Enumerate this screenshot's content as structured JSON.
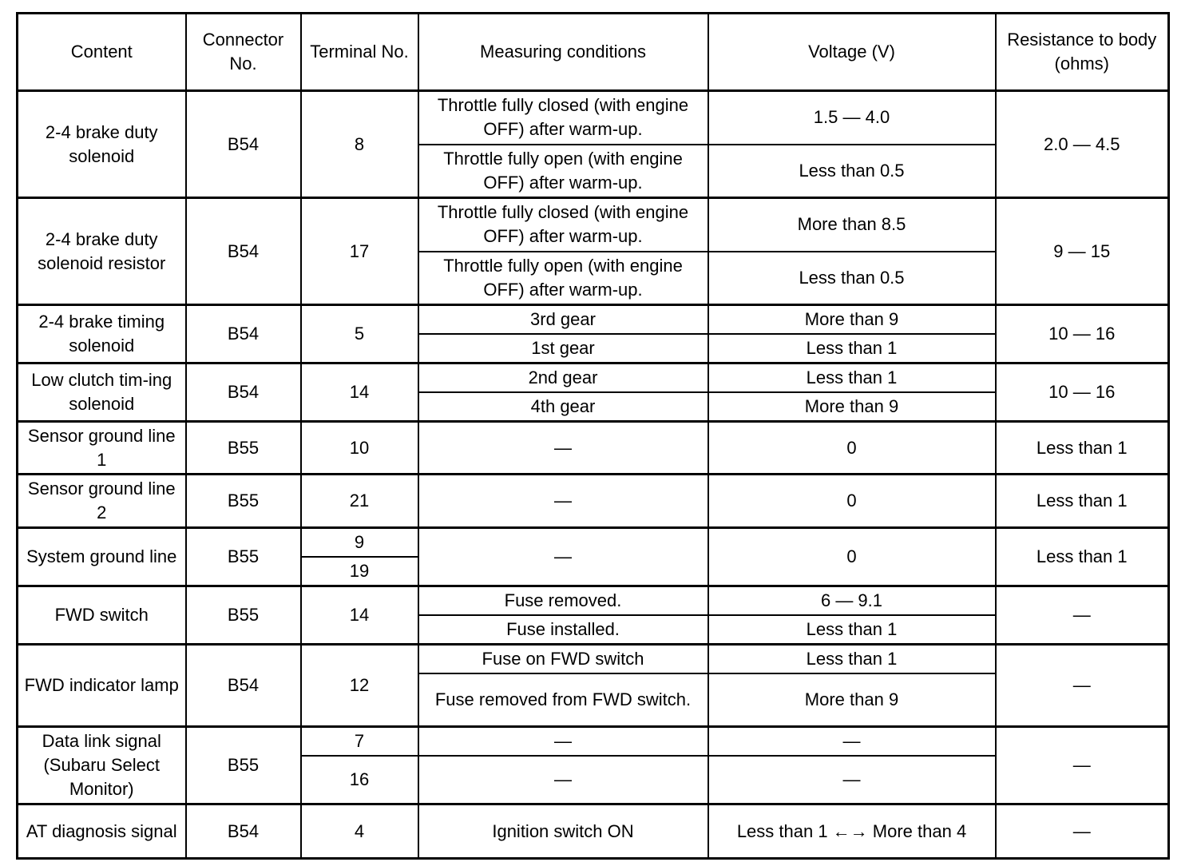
{
  "headers": [
    "Content",
    "Connector No.",
    "Terminal No.",
    "Measuring conditions",
    "Voltage (V)",
    "Resistance to body (ohms)"
  ],
  "groups": [
    {
      "content": "2-4 brake duty solenoid",
      "connector": "B54",
      "terminal": "8",
      "conditions": [
        "Throttle fully closed (with engine OFF) after warm-up.",
        "Throttle fully open (with engine OFF) after warm-up."
      ],
      "voltage": [
        "1.5 — 4.0",
        "Less than 0.5"
      ],
      "resistance": "2.0 — 4.5"
    },
    {
      "content": "2-4 brake duty solenoid resistor",
      "connector": "B54",
      "terminal": "17",
      "conditions": [
        "Throttle fully closed (with engine OFF) after warm-up.",
        "Throttle fully open (with engine OFF) after warm-up."
      ],
      "voltage": [
        "More than 8.5",
        "Less than 0.5"
      ],
      "resistance": "9 — 15"
    },
    {
      "content": "2-4 brake timing solenoid",
      "connector": "B54",
      "terminal": "5",
      "conditions": [
        "3rd gear",
        "1st gear"
      ],
      "voltage": [
        "More than 9",
        "Less than 1"
      ],
      "resistance": "10 — 16"
    },
    {
      "content": "Low clutch tim-ing solenoid",
      "connector": "B54",
      "terminal": "14",
      "conditions": [
        "2nd gear",
        "4th gear"
      ],
      "voltage": [
        "Less than 1",
        "More than 9"
      ],
      "resistance": "10 — 16"
    },
    {
      "content": "Sensor ground line 1",
      "connector": "B55",
      "terminal": "10",
      "conditions": "—",
      "voltage": "0",
      "resistance": "Less than 1"
    },
    {
      "content": "Sensor ground line 2",
      "connector": "B55",
      "terminal": "21",
      "conditions": "—",
      "voltage": "0",
      "resistance": "Less than 1"
    },
    {
      "content": "System ground line",
      "connector": "B55",
      "terminal": [
        "9",
        "19"
      ],
      "conditions": "—",
      "voltage": "0",
      "resistance": "Less than 1"
    },
    {
      "content": "FWD switch",
      "connector": "B55",
      "terminal": "14",
      "conditions": [
        "Fuse removed.",
        "Fuse installed."
      ],
      "voltage": [
        "6 — 9.1",
        "Less than 1"
      ],
      "resistance": "—"
    },
    {
      "content": "FWD indicator lamp",
      "connector": "B54",
      "terminal": "12",
      "conditions": [
        "Fuse on FWD switch",
        "Fuse removed from FWD switch."
      ],
      "voltage": [
        "Less than 1",
        "More than 9"
      ],
      "resistance": "—"
    },
    {
      "content": "Data link signal (Subaru Select Monitor)",
      "connector": "B55",
      "terminal": [
        "7",
        "16"
      ],
      "conditions": [
        "—",
        "—"
      ],
      "voltage": [
        "—",
        "—"
      ],
      "resistance": "—"
    },
    {
      "content": "AT diagnosis signal",
      "connector": "B54",
      "terminal": "4",
      "conditions": "Ignition switch ON",
      "voltage": "Less than 1 ←→ More than 4",
      "resistance": "—"
    }
  ]
}
